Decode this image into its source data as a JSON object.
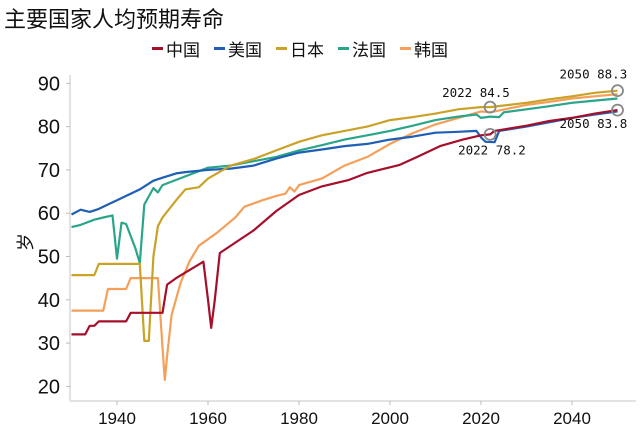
{
  "chart_data": {
    "type": "line",
    "title": "主要国家人均预期寿命",
    "xlabel": "",
    "ylabel": "岁",
    "xlim": [
      1930,
      2053
    ],
    "ylim": [
      17,
      93
    ],
    "xticks": [
      1940,
      1960,
      1980,
      2000,
      2020,
      2040
    ],
    "yticks": [
      20,
      30,
      40,
      50,
      60,
      70,
      80,
      90
    ],
    "grid": false,
    "legend": "top",
    "series": [
      {
        "name": "中国",
        "color": "#a50f2a",
        "points": [
          [
            1930,
            32
          ],
          [
            1933,
            32
          ],
          [
            1934,
            34
          ],
          [
            1935,
            34
          ],
          [
            1936,
            35
          ],
          [
            1942,
            35
          ],
          [
            1943,
            37
          ],
          [
            1950,
            37
          ],
          [
            1951,
            43.5
          ],
          [
            1953,
            45
          ],
          [
            1959,
            48.8
          ],
          [
            1960,
            40
          ],
          [
            1960.7,
            33.5
          ],
          [
            1961.5,
            40
          ],
          [
            1962.6,
            50.8
          ],
          [
            1970,
            56
          ],
          [
            1975,
            60.5
          ],
          [
            1980,
            64.2
          ],
          [
            1985,
            66.2
          ],
          [
            1991,
            67.7
          ],
          [
            1995,
            69.3
          ],
          [
            2002,
            71.1
          ],
          [
            2006,
            73
          ],
          [
            2011,
            75.5
          ],
          [
            2016,
            77
          ],
          [
            2020,
            78
          ],
          [
            2022,
            78.2
          ],
          [
            2023,
            79
          ],
          [
            2030,
            80.2
          ],
          [
            2035,
            81.3
          ],
          [
            2040,
            82
          ],
          [
            2045,
            83
          ],
          [
            2050,
            83.8
          ]
        ]
      },
      {
        "name": "美国",
        "color": "#1f5fb5",
        "points": [
          [
            1930,
            59.7
          ],
          [
            1932,
            60.8
          ],
          [
            1934,
            60.3
          ],
          [
            1936,
            61
          ],
          [
            1938,
            62
          ],
          [
            1940,
            63
          ],
          [
            1942,
            64
          ],
          [
            1945,
            65.5
          ],
          [
            1948,
            67.5
          ],
          [
            1950,
            68.2
          ],
          [
            1953,
            69.2
          ],
          [
            1955,
            69.5
          ],
          [
            1960,
            70
          ],
          [
            1965,
            70.3
          ],
          [
            1970,
            71
          ],
          [
            1975,
            72.6
          ],
          [
            1980,
            74
          ],
          [
            1985,
            74.7
          ],
          [
            1990,
            75.5
          ],
          [
            1995,
            76
          ],
          [
            2000,
            77
          ],
          [
            2005,
            77.7
          ],
          [
            2010,
            78.6
          ],
          [
            2015,
            78.8
          ],
          [
            2019,
            79
          ],
          [
            2020,
            77.5
          ],
          [
            2021,
            76.5
          ],
          [
            2023,
            76.4
          ],
          [
            2024,
            79
          ],
          [
            2030,
            80
          ],
          [
            2035,
            81
          ],
          [
            2040,
            82
          ],
          [
            2045,
            82.8
          ],
          [
            2050,
            83.5
          ]
        ]
      },
      {
        "name": "日本",
        "color": "#c9a227",
        "points": [
          [
            1930,
            45.7
          ],
          [
            1935,
            45.7
          ],
          [
            1936,
            48.3
          ],
          [
            1945,
            48.3
          ],
          [
            1946,
            30.5
          ],
          [
            1947,
            30.5
          ],
          [
            1948,
            50
          ],
          [
            1949,
            57
          ],
          [
            1950,
            59
          ],
          [
            1953,
            63
          ],
          [
            1955,
            65.5
          ],
          [
            1958,
            66
          ],
          [
            1960,
            68
          ],
          [
            1965,
            71
          ],
          [
            1970,
            72.5
          ],
          [
            1975,
            74.5
          ],
          [
            1980,
            76.5
          ],
          [
            1985,
            78
          ],
          [
            1990,
            79
          ],
          [
            1995,
            80
          ],
          [
            2000,
            81.5
          ],
          [
            2005,
            82.2
          ],
          [
            2010,
            83
          ],
          [
            2015,
            84
          ],
          [
            2020,
            84.5
          ],
          [
            2022,
            84.5
          ],
          [
            2030,
            85.5
          ],
          [
            2035,
            86.3
          ],
          [
            2040,
            87
          ],
          [
            2045,
            87.8
          ],
          [
            2050,
            88.3
          ]
        ]
      },
      {
        "name": "法国",
        "color": "#2aa58a",
        "points": [
          [
            1930,
            56.8
          ],
          [
            1932,
            57.3
          ],
          [
            1935,
            58.5
          ],
          [
            1937,
            59
          ],
          [
            1939,
            59.5
          ],
          [
            1940,
            49.5
          ],
          [
            1941,
            57.8
          ],
          [
            1942,
            57.5
          ],
          [
            1944,
            52
          ],
          [
            1945,
            48.5
          ],
          [
            1946,
            62
          ],
          [
            1948,
            65.8
          ],
          [
            1949,
            64.8
          ],
          [
            1950,
            66.5
          ],
          [
            1955,
            68.5
          ],
          [
            1960,
            70.5
          ],
          [
            1965,
            71
          ],
          [
            1970,
            72
          ],
          [
            1975,
            73
          ],
          [
            1980,
            74.5
          ],
          [
            1985,
            75.7
          ],
          [
            1990,
            77
          ],
          [
            1995,
            78
          ],
          [
            2000,
            79
          ],
          [
            2005,
            80.2
          ],
          [
            2010,
            81.5
          ],
          [
            2015,
            82.3
          ],
          [
            2019,
            82.8
          ],
          [
            2020,
            82
          ],
          [
            2022,
            82.3
          ],
          [
            2024,
            82.2
          ],
          [
            2025,
            83.3
          ],
          [
            2030,
            84
          ],
          [
            2035,
            84.7
          ],
          [
            2040,
            85.5
          ],
          [
            2045,
            86
          ],
          [
            2050,
            86.5
          ]
        ]
      },
      {
        "name": "韩国",
        "color": "#f4a05a",
        "points": [
          [
            1930,
            37.5
          ],
          [
            1937,
            37.5
          ],
          [
            1938,
            42.5
          ],
          [
            1942,
            42.5
          ],
          [
            1943,
            45
          ],
          [
            1949,
            45
          ],
          [
            1950,
            29
          ],
          [
            1950.5,
            21.5
          ],
          [
            1951,
            27
          ],
          [
            1952,
            36.5
          ],
          [
            1954,
            44
          ],
          [
            1956,
            49
          ],
          [
            1958,
            52.5
          ],
          [
            1962,
            55.5
          ],
          [
            1966,
            59
          ],
          [
            1968,
            61.5
          ],
          [
            1972,
            63
          ],
          [
            1975,
            64
          ],
          [
            1977,
            64.5
          ],
          [
            1978,
            66
          ],
          [
            1979,
            65
          ],
          [
            1980,
            66.5
          ],
          [
            1985,
            68
          ],
          [
            1990,
            71
          ],
          [
            1995,
            73
          ],
          [
            2000,
            76
          ],
          [
            2005,
            78.5
          ],
          [
            2010,
            80.5
          ],
          [
            2015,
            82
          ],
          [
            2020,
            83.5
          ],
          [
            2022,
            83.3
          ],
          [
            2030,
            85
          ],
          [
            2035,
            85.7
          ],
          [
            2040,
            86.5
          ],
          [
            2045,
            87
          ],
          [
            2050,
            87.5
          ]
        ]
      }
    ],
    "annotations": [
      {
        "year": 2022,
        "value": 84.5,
        "label": "2022  84.5"
      },
      {
        "year": 2050,
        "value": 88.3,
        "label": "2050  88.3"
      },
      {
        "year": 2022,
        "value": 78.2,
        "label": "2022  78.2"
      },
      {
        "year": 2050,
        "value": 83.8,
        "label": "2050  83.8"
      }
    ]
  }
}
